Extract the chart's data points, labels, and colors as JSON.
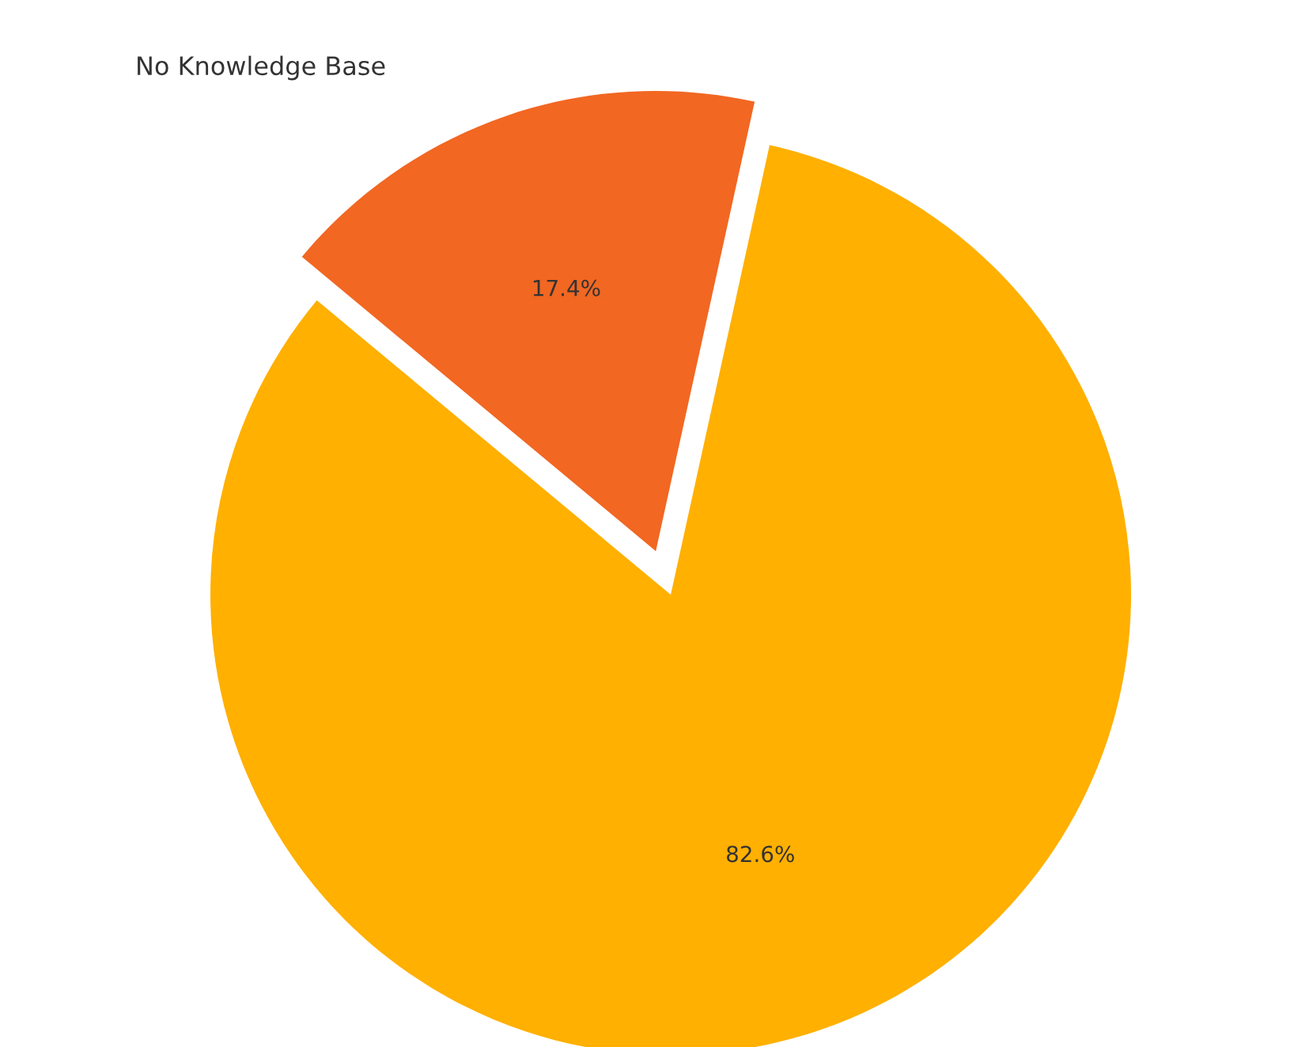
{
  "chart_data": {
    "type": "pie",
    "title": "No Knowledge Base",
    "categories": [
      null,
      null
    ],
    "values": [
      17.4,
      82.6
    ],
    "colors": [
      "#f26722",
      "#ffb000"
    ],
    "value_labels": [
      "17.4%",
      "82.6%"
    ],
    "legend": false
  }
}
